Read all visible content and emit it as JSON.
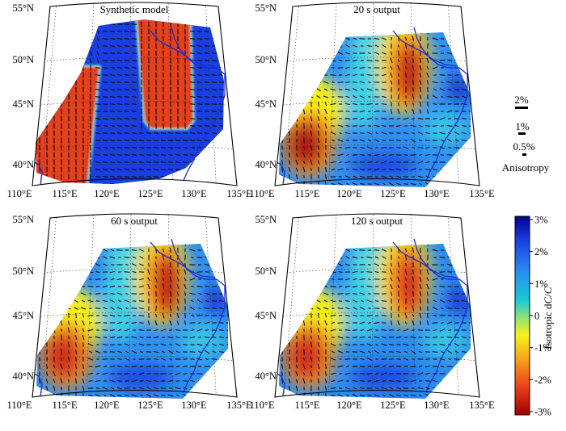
{
  "figure": {
    "panels": [
      {
        "id": "synthetic",
        "title": "Synthetic model",
        "kind": "synthetic"
      },
      {
        "id": "out20",
        "title": "20 s output",
        "kind": "smooth20"
      },
      {
        "id": "out60",
        "title": "60 s output",
        "kind": "smooth60"
      },
      {
        "id": "out120",
        "title": "120 s output",
        "kind": "smooth120"
      }
    ],
    "lat_labels": [
      "55°N",
      "50°N",
      "45°N",
      "40°N"
    ],
    "lon_labels": [
      "110°E",
      "115°E",
      "120°E",
      "125°E",
      "130°E",
      "135°E"
    ],
    "anisotropy_legend": {
      "items": [
        "2%",
        "1%",
        "0.5%"
      ],
      "title": "Anisotropy"
    },
    "colorbar": {
      "ticks": [
        "3%",
        "2%",
        "1%",
        "0",
        "-1%",
        "-2%",
        "-3%"
      ],
      "label_prefix": "Isotropic d",
      "label_var": "C",
      "label_slash": "/",
      "label_var2": "C",
      "colors": [
        "#00008b",
        "#1a3fe0",
        "#2b8cf0",
        "#19c8d8",
        "#9be56a",
        "#f7f21c",
        "#f7a21a",
        "#e8401a",
        "#9e0000"
      ]
    }
  }
}
